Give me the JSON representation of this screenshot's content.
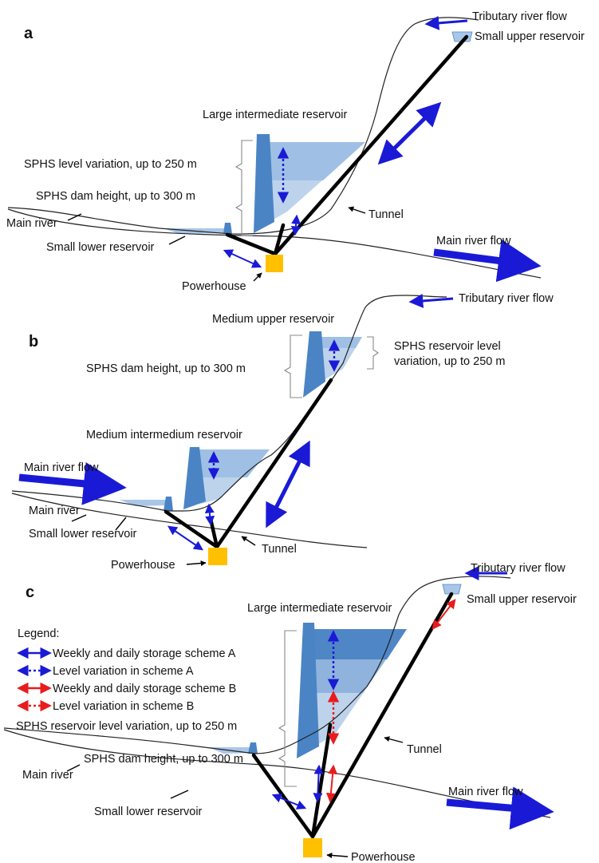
{
  "panels": {
    "a": {
      "letter": "a",
      "tributary_flow": "Tributary river flow",
      "upper_reservoir": "Small upper reservoir",
      "intermediate_reservoir": "Large intermediate reservoir",
      "level_variation": "SPHS level variation, up to 250 m",
      "dam_height": "SPHS dam height, up to 300 m",
      "main_river": "Main river",
      "lower_reservoir": "Small lower reservoir",
      "tunnel": "Tunnel",
      "main_flow": "Main river flow",
      "powerhouse": "Powerhouse"
    },
    "b": {
      "letter": "b",
      "tributary_flow": "Tributary river flow",
      "upper_reservoir": "Medium upper reservoir",
      "dam_height": "SPHS dam height, up to 300 m",
      "level_variation_line1": "SPHS reservoir level",
      "level_variation_line2": "variation, up to 250 m",
      "intermediate_reservoir": "Medium intermedium reservoir",
      "main_flow": "Main river flow",
      "main_river": "Main river",
      "lower_reservoir": "Small lower reservoir",
      "tunnel": "Tunnel",
      "powerhouse": "Powerhouse"
    },
    "c": {
      "letter": "c",
      "tributary_flow": "Tributary river flow",
      "upper_reservoir": "Small upper reservoir",
      "intermediate_reservoir": "Large intermediate reservoir",
      "legend_title": "Legend:",
      "legend": [
        {
          "label": "Weekly and daily storage scheme A",
          "color": "#1a1ad6",
          "style": "solid"
        },
        {
          "label": "Level variation in scheme A",
          "color": "#1a1ad6",
          "style": "dotted"
        },
        {
          "label": "Weekly and daily storage scheme B",
          "color": "#e81c1c",
          "style": "solid"
        },
        {
          "label": "Level variation in scheme B",
          "color": "#e81c1c",
          "style": "dotted"
        }
      ],
      "level_variation": "SPHS reservoir level variation, up to 250 m",
      "dam_height": "SPHS dam height, up to 300 m",
      "tunnel": "Tunnel",
      "main_river": "Main river",
      "main_flow": "Main river flow",
      "lower_reservoir": "Small lower reservoir",
      "powerhouse": "Powerhouse"
    }
  },
  "colors": {
    "scheme_a": "#1a1ad6",
    "scheme_b": "#e81c1c",
    "water_light": "#bdd3ec",
    "water_mid": "#8fb3dc",
    "water_dark": "#4f86c6",
    "dam": "#4a84c4",
    "powerhouse": "#ffc000"
  }
}
